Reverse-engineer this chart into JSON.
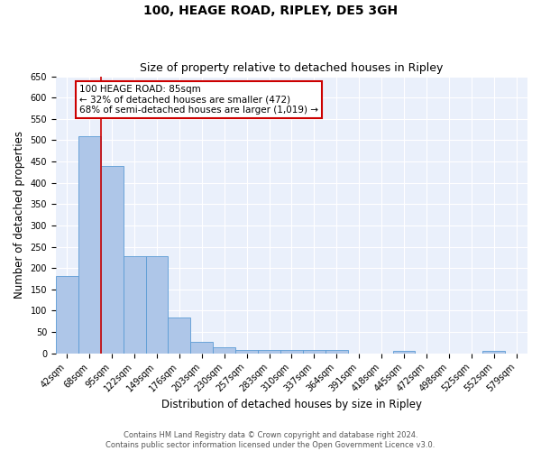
{
  "title": "100, HEAGE ROAD, RIPLEY, DE5 3GH",
  "subtitle": "Size of property relative to detached houses in Ripley",
  "xlabel": "Distribution of detached houses by size in Ripley",
  "ylabel": "Number of detached properties",
  "footer_line1": "Contains HM Land Registry data © Crown copyright and database right 2024.",
  "footer_line2": "Contains public sector information licensed under the Open Government Licence v3.0.",
  "categories": [
    "42sqm",
    "68sqm",
    "95sqm",
    "122sqm",
    "149sqm",
    "176sqm",
    "203sqm",
    "230sqm",
    "257sqm",
    "283sqm",
    "310sqm",
    "337sqm",
    "364sqm",
    "391sqm",
    "418sqm",
    "445sqm",
    "472sqm",
    "498sqm",
    "525sqm",
    "552sqm",
    "579sqm"
  ],
  "values": [
    182,
    510,
    440,
    227,
    227,
    84,
    27,
    14,
    8,
    8,
    8,
    8,
    8,
    0,
    0,
    6,
    0,
    0,
    0,
    6,
    0
  ],
  "bar_color": "#aec6e8",
  "bar_edge_color": "#5b9bd5",
  "bg_color": "#eaf0fb",
  "grid_color": "#ffffff",
  "annotation_line1": "100 HEAGE ROAD: 85sqm",
  "annotation_line2": "← 32% of detached houses are smaller (472)",
  "annotation_line3": "68% of semi-detached houses are larger (1,019) →",
  "annotation_box_color": "#ffffff",
  "annotation_box_edge": "#cc0000",
  "red_line_color": "#cc0000",
  "ylim": [
    0,
    650
  ],
  "yticks": [
    0,
    50,
    100,
    150,
    200,
    250,
    300,
    350,
    400,
    450,
    500,
    550,
    600,
    650
  ],
  "title_fontsize": 10,
  "subtitle_fontsize": 9,
  "tick_fontsize": 7,
  "ylabel_fontsize": 8.5,
  "xlabel_fontsize": 8.5,
  "footer_fontsize": 6,
  "annot_fontsize": 7.5
}
